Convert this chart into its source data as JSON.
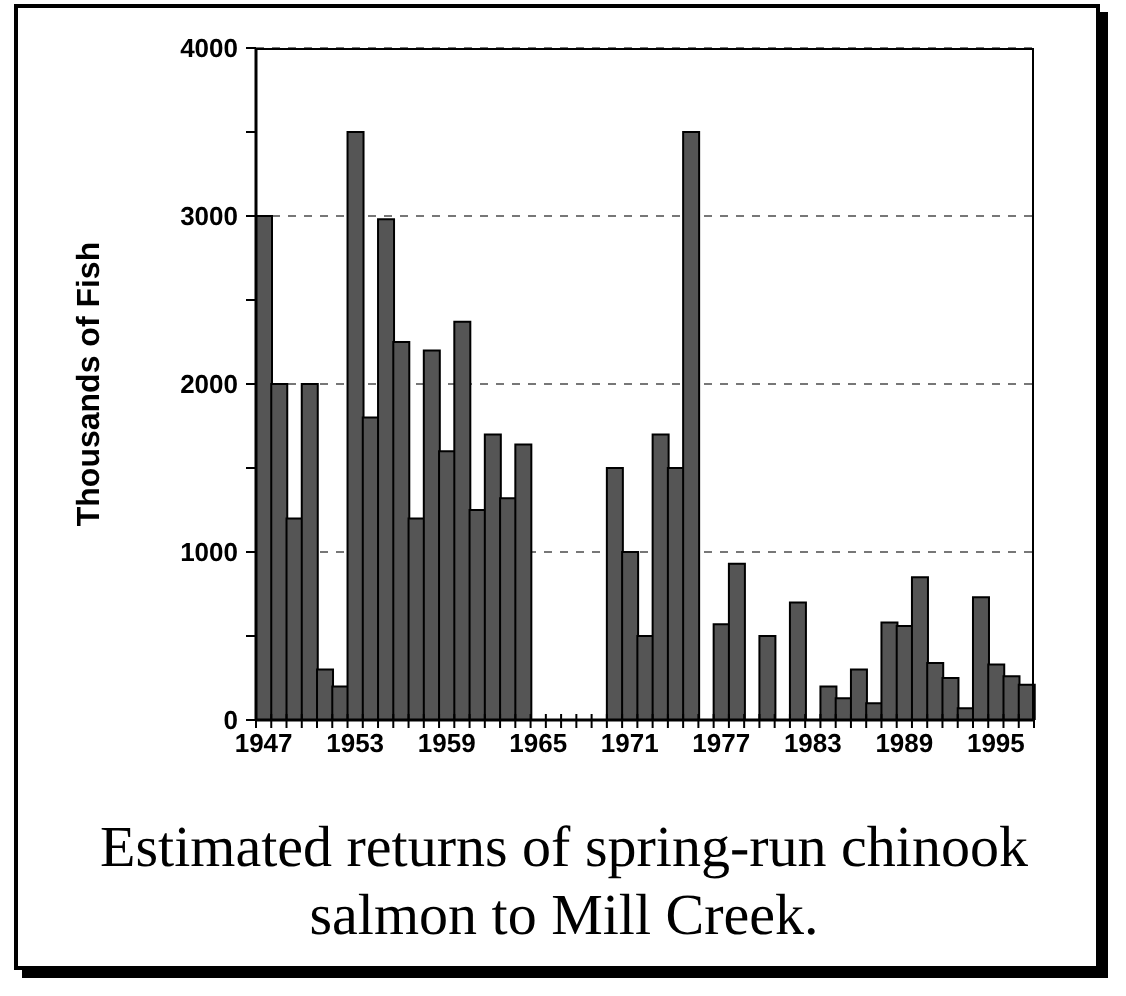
{
  "chart_data": {
    "type": "bar",
    "ylabel": "Thousands of Fish",
    "annotations": [
      "Estimated returns of spring-run chinook salmon to Mill Creek."
    ],
    "categories": [
      "1947",
      null,
      null,
      null,
      null,
      null,
      "1953",
      null,
      null,
      null,
      null,
      null,
      "1959",
      null,
      null,
      null,
      null,
      null,
      "1965",
      null,
      null,
      null,
      null,
      null,
      "1971",
      null,
      null,
      null,
      null,
      null,
      "1977",
      null,
      null,
      null,
      null,
      null,
      "1983",
      null,
      null,
      null,
      null,
      null,
      "1989",
      null,
      null,
      null,
      null,
      null,
      "1995",
      null,
      null
    ],
    "values": [
      3000,
      2000,
      1200,
      2000,
      300,
      200,
      3500,
      1800,
      2980,
      2250,
      1200,
      2200,
      1600,
      2370,
      1250,
      1700,
      1320,
      1640,
      null,
      null,
      null,
      null,
      null,
      1500,
      1000,
      500,
      1700,
      1500,
      3500,
      null,
      570,
      930,
      null,
      500,
      null,
      700,
      null,
      200,
      130,
      300,
      100,
      580,
      560,
      850,
      340,
      250,
      70,
      730,
      330,
      260,
      210
    ],
    "color": "#555555",
    "ylim": [
      0,
      4000
    ],
    "yticks": [
      0,
      {
        "value": 500,
        "label": null
      },
      1000,
      {
        "value": 1500,
        "label": null
      },
      2000,
      {
        "value": 2500,
        "label": null
      },
      3000,
      {
        "value": 3500,
        "label": null
      },
      4000
    ],
    "grid": "y"
  }
}
